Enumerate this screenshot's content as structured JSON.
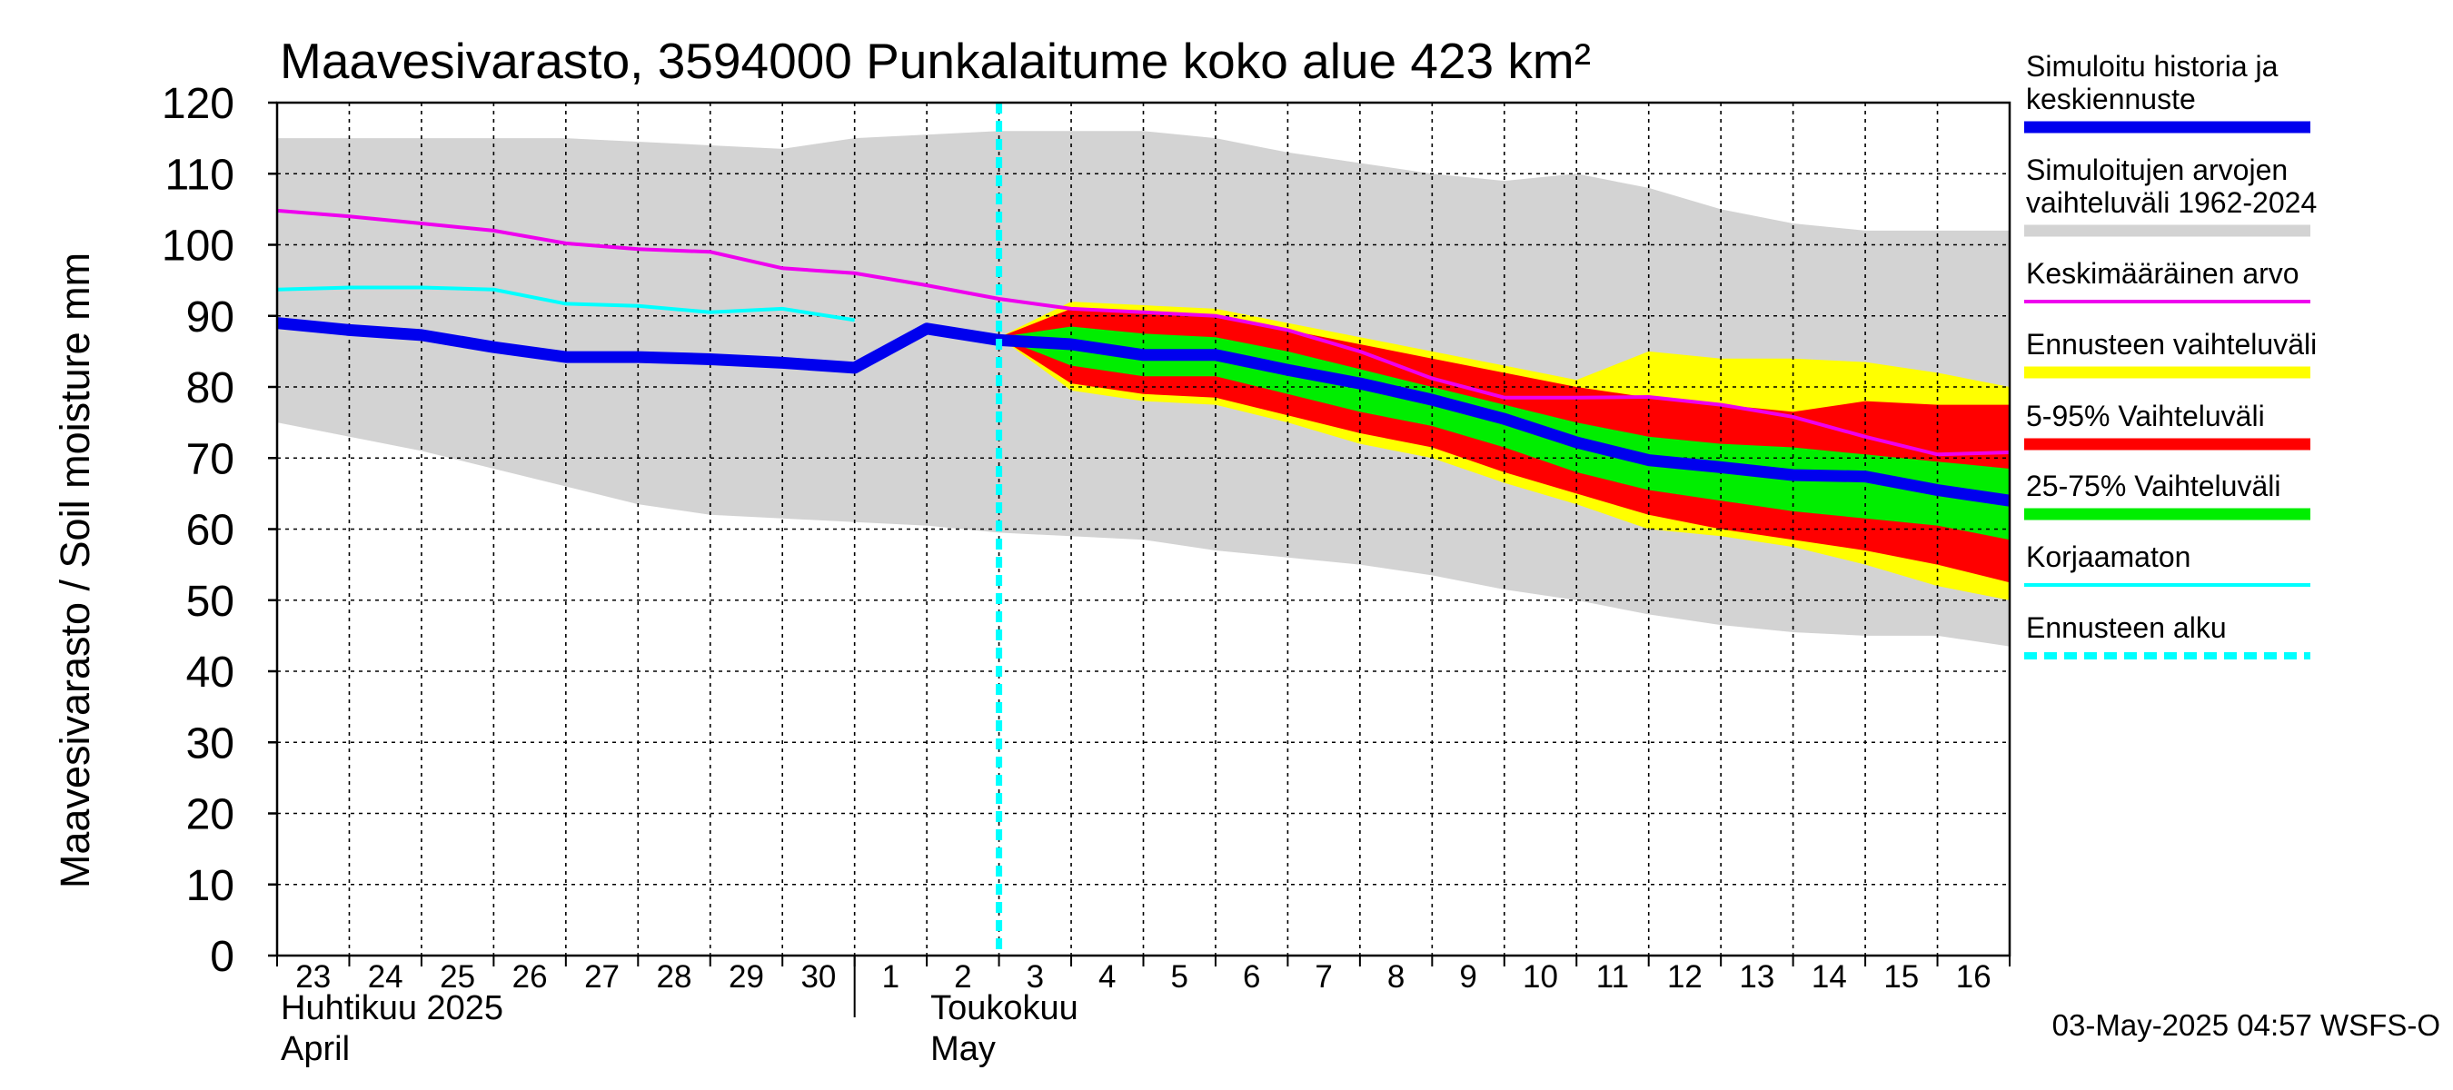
{
  "colors": {
    "background": "#ffffff",
    "gridline": "#000000",
    "sim_range": "#d3d3d3",
    "forecast_range": "#ffff00",
    "band_5_95": "#ff0000",
    "band_25_75": "#00ee00",
    "history_and_median": "#0000ee",
    "mean": "#ee00ee",
    "uncorrected": "#00ffff",
    "forecast_start": "#00ffff"
  },
  "chart_data": {
    "type": "line",
    "title": "Maavesivarasto, 3594000 Punkalaitume koko alue 423 km²",
    "ylabel": "Maavesivarasto / Soil moisture   mm",
    "ylim": [
      0,
      120
    ],
    "yticks": [
      0,
      10,
      20,
      30,
      40,
      50,
      60,
      70,
      80,
      90,
      100,
      110,
      120
    ],
    "grid": true,
    "legend_position": "right",
    "x_days": [
      "23",
      "24",
      "25",
      "26",
      "27",
      "28",
      "29",
      "30",
      "1",
      "2",
      "3",
      "4",
      "5",
      "6",
      "7",
      "8",
      "9",
      "10",
      "11",
      "12",
      "13",
      "14",
      "15",
      "16"
    ],
    "x_dates": [
      "2025-04-23",
      "2025-04-24",
      "2025-04-25",
      "2025-04-26",
      "2025-04-27",
      "2025-04-28",
      "2025-04-29",
      "2025-04-30",
      "2025-05-01",
      "2025-05-02",
      "2025-05-03",
      "2025-05-04",
      "2025-05-05",
      "2025-05-06",
      "2025-05-07",
      "2025-05-08",
      "2025-05-09",
      "2025-05-10",
      "2025-05-11",
      "2025-05-12",
      "2025-05-13",
      "2025-05-14",
      "2025-05-15",
      "2025-05-16"
    ],
    "month_labels": [
      {
        "fi": "Huhtikuu  2025",
        "en": "April"
      },
      {
        "fi": "Toukokuu",
        "en": "May"
      }
    ],
    "forecast_start": "2025-05-03",
    "sim_range": {
      "x": [
        "2025-04-23",
        "2025-04-24",
        "2025-04-25",
        "2025-04-26",
        "2025-04-27",
        "2025-04-28",
        "2025-04-29",
        "2025-04-30",
        "2025-05-01",
        "2025-05-02",
        "2025-05-03",
        "2025-05-04",
        "2025-05-05",
        "2025-05-06",
        "2025-05-07",
        "2025-05-08",
        "2025-05-09",
        "2025-05-10",
        "2025-05-11",
        "2025-05-12",
        "2025-05-13",
        "2025-05-14",
        "2025-05-15",
        "2025-05-16",
        "2025-05-17"
      ],
      "upper": [
        115,
        115,
        115,
        115,
        115,
        114.5,
        114,
        113.5,
        115,
        115.5,
        116,
        116,
        116,
        115,
        113,
        111.5,
        110,
        109,
        110,
        108,
        105,
        103,
        102,
        102,
        102
      ],
      "lower": [
        75,
        73,
        71,
        68.5,
        66,
        63.5,
        62,
        61.5,
        61,
        60.5,
        59.5,
        59,
        58.5,
        57,
        56,
        55,
        53.5,
        51.5,
        50,
        48,
        46.5,
        45.5,
        45,
        45,
        43.5
      ]
    },
    "forecast_range": {
      "x": [
        "2025-05-03",
        "2025-05-04",
        "2025-05-05",
        "2025-05-06",
        "2025-05-07",
        "2025-05-08",
        "2025-05-09",
        "2025-05-10",
        "2025-05-11",
        "2025-05-12",
        "2025-05-13",
        "2025-05-14",
        "2025-05-15",
        "2025-05-16",
        "2025-05-17"
      ],
      "upper": [
        87,
        92,
        91.5,
        91,
        89,
        87,
        85,
        83,
        81,
        85,
        84,
        84,
        83.5,
        82,
        80
      ],
      "lower": [
        87,
        79.5,
        78,
        77.5,
        75,
        72,
        70,
        66.5,
        63.5,
        60,
        59,
        57.5,
        55,
        52,
        50
      ]
    },
    "band_5_95": {
      "x": [
        "2025-05-03",
        "2025-05-04",
        "2025-05-05",
        "2025-05-06",
        "2025-05-07",
        "2025-05-08",
        "2025-05-09",
        "2025-05-10",
        "2025-05-11",
        "2025-05-12",
        "2025-05-13",
        "2025-05-14",
        "2025-05-15",
        "2025-05-16",
        "2025-05-17"
      ],
      "upper": [
        87,
        91,
        90.5,
        90,
        88,
        86,
        84,
        82,
        80,
        78.5,
        77.5,
        76.5,
        78,
        77.5,
        77.5
      ],
      "lower": [
        87,
        80.5,
        79,
        78.5,
        76,
        73.5,
        71.5,
        68,
        65,
        62,
        60,
        58.5,
        57,
        55,
        52.5
      ]
    },
    "band_25_75": {
      "x": [
        "2025-05-03",
        "2025-05-04",
        "2025-05-05",
        "2025-05-06",
        "2025-05-07",
        "2025-05-08",
        "2025-05-09",
        "2025-05-10",
        "2025-05-11",
        "2025-05-12",
        "2025-05-13",
        "2025-05-14",
        "2025-05-15",
        "2025-05-16",
        "2025-05-17"
      ],
      "upper": [
        87,
        88.5,
        87.5,
        87,
        85,
        82.5,
        80,
        77.5,
        75,
        73,
        72,
        71.5,
        70.5,
        69.5,
        68.5
      ],
      "lower": [
        87,
        83,
        81.5,
        81.5,
        79,
        76.5,
        74.5,
        71.5,
        68,
        65.5,
        64,
        62.5,
        61.5,
        60.5,
        58.5
      ]
    },
    "series": [
      {
        "name": "Simuloitu historia ja keskiennuste",
        "x": [
          "2025-04-23",
          "2025-04-24",
          "2025-04-25",
          "2025-04-26",
          "2025-04-27",
          "2025-04-28",
          "2025-04-29",
          "2025-04-30",
          "2025-05-01",
          "2025-05-02",
          "2025-05-03",
          "2025-05-04",
          "2025-05-05",
          "2025-05-06",
          "2025-05-07",
          "2025-05-08",
          "2025-05-09",
          "2025-05-10",
          "2025-05-11",
          "2025-05-12",
          "2025-05-13",
          "2025-05-14",
          "2025-05-15",
          "2025-05-16",
          "2025-05-17"
        ],
        "values": [
          89,
          88,
          87.3,
          85.6,
          84.2,
          84.2,
          83.9,
          83.4,
          82.7,
          88.2,
          86.6,
          86,
          84.5,
          84.5,
          82.4,
          80.5,
          78.2,
          75.5,
          72.2,
          69.7,
          68.7,
          67.6,
          67.4,
          65.5,
          64
        ]
      },
      {
        "name": "Keskimääräinen arvo",
        "x": [
          "2025-04-23",
          "2025-04-24",
          "2025-04-25",
          "2025-04-26",
          "2025-04-27",
          "2025-04-28",
          "2025-04-29",
          "2025-04-30",
          "2025-05-01",
          "2025-05-02",
          "2025-05-03",
          "2025-05-04",
          "2025-05-05",
          "2025-05-06",
          "2025-05-07",
          "2025-05-08",
          "2025-05-09",
          "2025-05-10",
          "2025-05-11",
          "2025-05-12",
          "2025-05-13",
          "2025-05-14",
          "2025-05-15",
          "2025-05-16",
          "2025-05-17"
        ],
        "values": [
          104.8,
          104,
          103,
          102,
          100.2,
          99.4,
          99,
          96.7,
          96,
          94.3,
          92.4,
          91,
          90.5,
          90,
          88,
          85,
          81.2,
          78.5,
          78.5,
          78.6,
          77.5,
          75.8,
          73,
          70.5,
          70.8
        ]
      },
      {
        "name": "Korjaamaton",
        "x": [
          "2025-04-23",
          "2025-04-24",
          "2025-04-25",
          "2025-04-26",
          "2025-04-27",
          "2025-04-28",
          "2025-04-29",
          "2025-04-30",
          "2025-05-01"
        ],
        "values": [
          93.7,
          94,
          94,
          93.7,
          91.7,
          91.4,
          90.5,
          91,
          89.4
        ]
      }
    ],
    "legend": [
      {
        "label": "Simuloitu historia ja keskiennuste",
        "style": "thick",
        "color": "#0000ee"
      },
      {
        "label": "Simuloitujen arvojen vaihteluväli 1962-2024",
        "style": "band",
        "color": "#d3d3d3"
      },
      {
        "label": "Keskimääräinen arvo",
        "style": "line",
        "color": "#ee00ee"
      },
      {
        "label": "Ennusteen vaihteluväli",
        "style": "band",
        "color": "#ffff00"
      },
      {
        "label": "5-95% Vaihteluväli",
        "style": "band",
        "color": "#ff0000"
      },
      {
        "label": "25-75% Vaihteluväli",
        "style": "band",
        "color": "#00ee00"
      },
      {
        "label": "Korjaamaton",
        "style": "line",
        "color": "#00ffff"
      },
      {
        "label": "Ennusteen alku",
        "style": "dashed",
        "color": "#00ffff"
      }
    ],
    "footer": "03-May-2025 04:57 WSFS-O"
  }
}
